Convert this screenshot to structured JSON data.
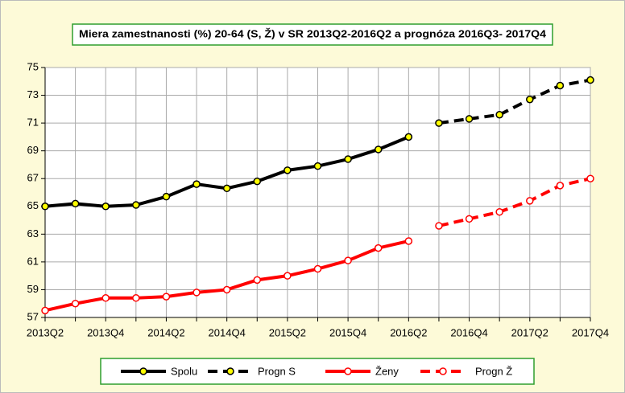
{
  "chart_data": {
    "type": "line",
    "title": "Miera zamestnanosti (%) 20-64 (S, Ž) v SR 2013Q2-2016Q2 a prognóza 2016Q3- 2017Q4",
    "categories": [
      "2013Q2",
      null,
      "2013Q4",
      null,
      "2014Q2",
      null,
      "2014Q4",
      null,
      "2015Q2",
      null,
      "2015Q4",
      null,
      "2016Q2",
      null,
      "2016Q4",
      null,
      "2017Q2",
      null,
      "2017Q4"
    ],
    "ylim": [
      57,
      75
    ],
    "yticks": [
      57,
      59,
      61,
      63,
      65,
      67,
      69,
      71,
      73,
      75
    ],
    "grid": true,
    "series": [
      {
        "name": "Spolu",
        "color": "#000000",
        "marker_fill": "#ffff00",
        "dashed": false,
        "values": [
          65.0,
          65.2,
          65.0,
          65.1,
          65.7,
          66.6,
          66.3,
          66.8,
          67.6,
          67.9,
          68.4,
          69.1,
          70.0,
          null,
          null,
          null,
          null,
          null,
          null
        ]
      },
      {
        "name": "Progn S",
        "color": "#000000",
        "marker_fill": "#ffff00",
        "dashed": true,
        "values": [
          null,
          null,
          null,
          null,
          null,
          null,
          null,
          null,
          null,
          null,
          null,
          null,
          null,
          71.0,
          71.3,
          71.6,
          72.7,
          73.7,
          74.1
        ]
      },
      {
        "name": "Ženy",
        "color": "#ff0000",
        "marker_fill": "#ffffff",
        "dashed": false,
        "values": [
          57.5,
          58.0,
          58.4,
          58.4,
          58.5,
          58.8,
          59.0,
          59.7,
          60.0,
          60.5,
          61.1,
          62.0,
          62.5,
          null,
          null,
          null,
          null,
          null,
          null
        ]
      },
      {
        "name": "Progn Ž",
        "color": "#ff0000",
        "marker_fill": "#ffffff",
        "dashed": true,
        "values": [
          null,
          null,
          null,
          null,
          null,
          null,
          null,
          null,
          null,
          null,
          null,
          null,
          null,
          63.6,
          64.1,
          64.6,
          65.4,
          66.5,
          67.0
        ]
      }
    ]
  }
}
